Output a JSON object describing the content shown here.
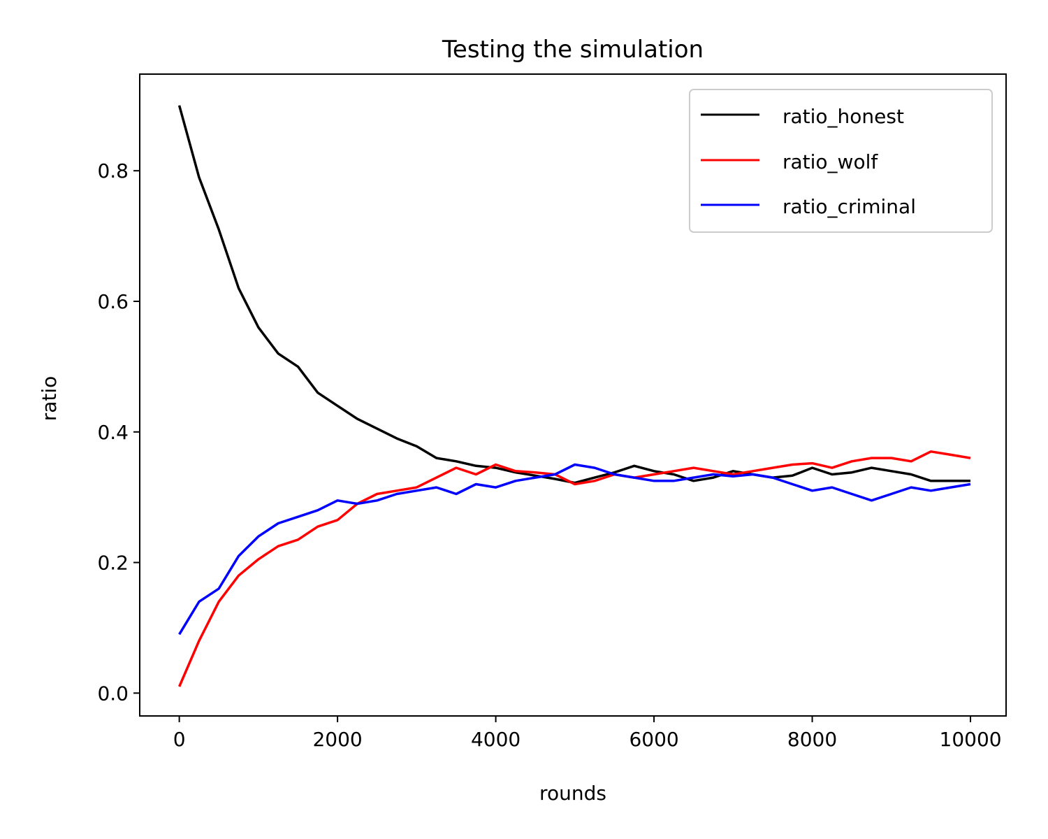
{
  "chart_data": {
    "type": "line",
    "title": "Testing the simulation",
    "xlabel": "rounds",
    "ylabel": "ratio",
    "xlim": [
      -500,
      10450
    ],
    "ylim": [
      -0.035,
      0.948
    ],
    "xticks": [
      0,
      2000,
      4000,
      6000,
      8000,
      10000
    ],
    "xtick_labels": [
      "0",
      "2000",
      "4000",
      "6000",
      "8000",
      "10000"
    ],
    "yticks": [
      0.0,
      0.2,
      0.4,
      0.6,
      0.8
    ],
    "ytick_labels": [
      "0.0",
      "0.2",
      "0.4",
      "0.6",
      "0.8"
    ],
    "grid": false,
    "legend_position": "top-right",
    "series": [
      {
        "name": "ratio_honest",
        "color": "#000000",
        "x": [
          0,
          250,
          500,
          750,
          1000,
          1250,
          1500,
          1750,
          2000,
          2250,
          2500,
          2750,
          3000,
          3250,
          3500,
          3750,
          4000,
          4250,
          4500,
          4750,
          5000,
          5250,
          5500,
          5750,
          6000,
          6250,
          6500,
          6750,
          7000,
          7250,
          7500,
          7750,
          8000,
          8250,
          8500,
          8750,
          9000,
          9250,
          9500,
          9750,
          10000
        ],
        "y": [
          0.9,
          0.79,
          0.71,
          0.62,
          0.56,
          0.52,
          0.5,
          0.46,
          0.44,
          0.42,
          0.405,
          0.39,
          0.378,
          0.36,
          0.355,
          0.348,
          0.345,
          0.338,
          0.333,
          0.328,
          0.322,
          0.33,
          0.338,
          0.348,
          0.34,
          0.335,
          0.325,
          0.33,
          0.34,
          0.335,
          0.33,
          0.333,
          0.345,
          0.335,
          0.338,
          0.345,
          0.34,
          0.335,
          0.325,
          0.325,
          0.325
        ]
      },
      {
        "name": "ratio_wolf",
        "color": "#ff0000",
        "x": [
          0,
          250,
          500,
          750,
          1000,
          1250,
          1500,
          1750,
          2000,
          2250,
          2500,
          2750,
          3000,
          3250,
          3500,
          3750,
          4000,
          4250,
          4500,
          4750,
          5000,
          5250,
          5500,
          5750,
          6000,
          6250,
          6500,
          6750,
          7000,
          7250,
          7500,
          7750,
          8000,
          8250,
          8500,
          8750,
          9000,
          9250,
          9500,
          9750,
          10000
        ],
        "y": [
          0.01,
          0.08,
          0.14,
          0.18,
          0.205,
          0.225,
          0.235,
          0.255,
          0.265,
          0.29,
          0.305,
          0.31,
          0.315,
          0.33,
          0.345,
          0.335,
          0.35,
          0.34,
          0.338,
          0.335,
          0.32,
          0.325,
          0.335,
          0.33,
          0.335,
          0.34,
          0.345,
          0.34,
          0.335,
          0.34,
          0.345,
          0.35,
          0.352,
          0.345,
          0.355,
          0.36,
          0.36,
          0.355,
          0.37,
          0.365,
          0.36
        ]
      },
      {
        "name": "ratio_criminal",
        "color": "#0000ff",
        "x": [
          0,
          250,
          500,
          750,
          1000,
          1250,
          1500,
          1750,
          2000,
          2250,
          2500,
          2750,
          3000,
          3250,
          3500,
          3750,
          4000,
          4250,
          4500,
          4750,
          5000,
          5250,
          5500,
          5750,
          6000,
          6250,
          6500,
          6750,
          7000,
          7250,
          7500,
          7750,
          8000,
          8250,
          8500,
          8750,
          9000,
          9250,
          9500,
          9750,
          10000
        ],
        "y": [
          0.09,
          0.14,
          0.16,
          0.21,
          0.24,
          0.26,
          0.27,
          0.28,
          0.295,
          0.29,
          0.295,
          0.305,
          0.31,
          0.315,
          0.305,
          0.32,
          0.315,
          0.325,
          0.33,
          0.335,
          0.35,
          0.345,
          0.335,
          0.33,
          0.325,
          0.325,
          0.33,
          0.335,
          0.332,
          0.335,
          0.33,
          0.32,
          0.31,
          0.315,
          0.305,
          0.295,
          0.305,
          0.315,
          0.31,
          0.315,
          0.32
        ]
      }
    ]
  }
}
